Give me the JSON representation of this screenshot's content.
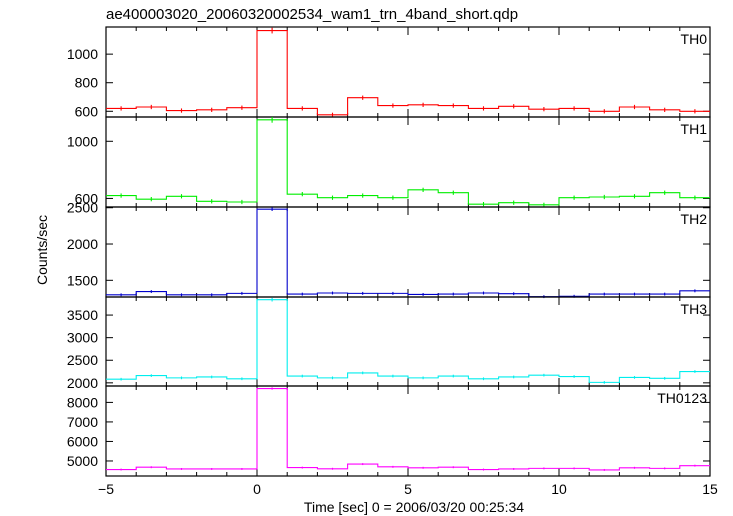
{
  "chart_data": {
    "type": "line",
    "title": "ae400003020_20060320002534_wam1_trn_4band_short.qdp",
    "xlabel": "Time [sec] 0 = 2006/03/20 00:25:34",
    "ylabel": "Counts/sec",
    "xlim": [
      -5,
      15
    ],
    "x_ticks": [
      -5,
      0,
      5,
      10,
      15
    ],
    "x_tick_labels": [
      "−5",
      "0",
      "5",
      "10",
      "15"
    ],
    "bin_width": 1.0,
    "x": [
      -4.5,
      -3.5,
      -2.5,
      -1.5,
      -0.5,
      0.5,
      1.5,
      2.5,
      3.5,
      4.5,
      5.5,
      6.5,
      7.5,
      8.5,
      9.5,
      10.5,
      11.5,
      12.5,
      13.5,
      14.5
    ],
    "panels": [
      {
        "name": "TH0",
        "color": "#ff0000",
        "ylim": [
          560,
          1190
        ],
        "y_ticks": [
          600,
          800,
          1000
        ],
        "values": [
          620,
          630,
          605,
          610,
          625,
          1165,
          620,
          575,
          695,
          640,
          645,
          640,
          620,
          635,
          615,
          620,
          600,
          630,
          610,
          600
        ],
        "errors": [
          15,
          15,
          15,
          15,
          15,
          20,
          15,
          15,
          15,
          15,
          15,
          15,
          15,
          15,
          15,
          15,
          15,
          15,
          15,
          15
        ]
      },
      {
        "name": "TH1",
        "color": "#00ee00",
        "ylim": [
          540,
          1170
        ],
        "y_ticks": [
          600,
          1000
        ],
        "extra_tick_labels": [
          {
            "value": 1000,
            "label": "1000"
          }
        ],
        "values": [
          620,
          595,
          615,
          580,
          575,
          1150,
          630,
          605,
          620,
          605,
          660,
          640,
          560,
          570,
          555,
          605,
          610,
          615,
          640,
          605
        ],
        "errors": [
          15,
          15,
          15,
          15,
          15,
          20,
          15,
          15,
          15,
          15,
          15,
          15,
          15,
          15,
          15,
          15,
          15,
          15,
          15,
          15
        ]
      },
      {
        "name": "TH2",
        "color": "#0000cc",
        "ylim": [
          1270,
          2510
        ],
        "y_ticks": [
          1500,
          2000,
          2500
        ],
        "values": [
          1300,
          1345,
          1300,
          1300,
          1320,
          2480,
          1310,
          1325,
          1320,
          1320,
          1305,
          1310,
          1325,
          1315,
          1275,
          1280,
          1310,
          1310,
          1310,
          1355
        ],
        "errors": [
          20,
          20,
          20,
          20,
          20,
          25,
          20,
          20,
          20,
          20,
          20,
          20,
          20,
          20,
          20,
          20,
          20,
          20,
          20,
          20
        ]
      },
      {
        "name": "TH3",
        "color": "#00eeee",
        "ylim": [
          1930,
          3900
        ],
        "y_ticks": [
          2000,
          2500,
          3000,
          3500
        ],
        "values": [
          2080,
          2160,
          2110,
          2130,
          2090,
          3840,
          2150,
          2110,
          2220,
          2150,
          2110,
          2150,
          2090,
          2130,
          2170,
          2140,
          2010,
          2120,
          2100,
          2250
        ],
        "errors": [
          30,
          30,
          30,
          30,
          30,
          40,
          30,
          30,
          30,
          30,
          30,
          30,
          30,
          30,
          30,
          30,
          30,
          30,
          30,
          30
        ]
      },
      {
        "name": "TH0123",
        "color": "#ff00ff",
        "ylim": [
          4230,
          8840
        ],
        "y_ticks": [
          5000,
          6000,
          7000,
          8000
        ],
        "values": [
          4560,
          4680,
          4590,
          4590,
          4590,
          8710,
          4660,
          4600,
          4840,
          4700,
          4650,
          4680,
          4560,
          4590,
          4620,
          4620,
          4540,
          4650,
          4620,
          4760
        ],
        "errors": [
          50,
          50,
          50,
          50,
          50,
          60,
          50,
          50,
          50,
          50,
          50,
          50,
          50,
          50,
          50,
          50,
          50,
          50,
          50,
          50
        ]
      }
    ]
  }
}
